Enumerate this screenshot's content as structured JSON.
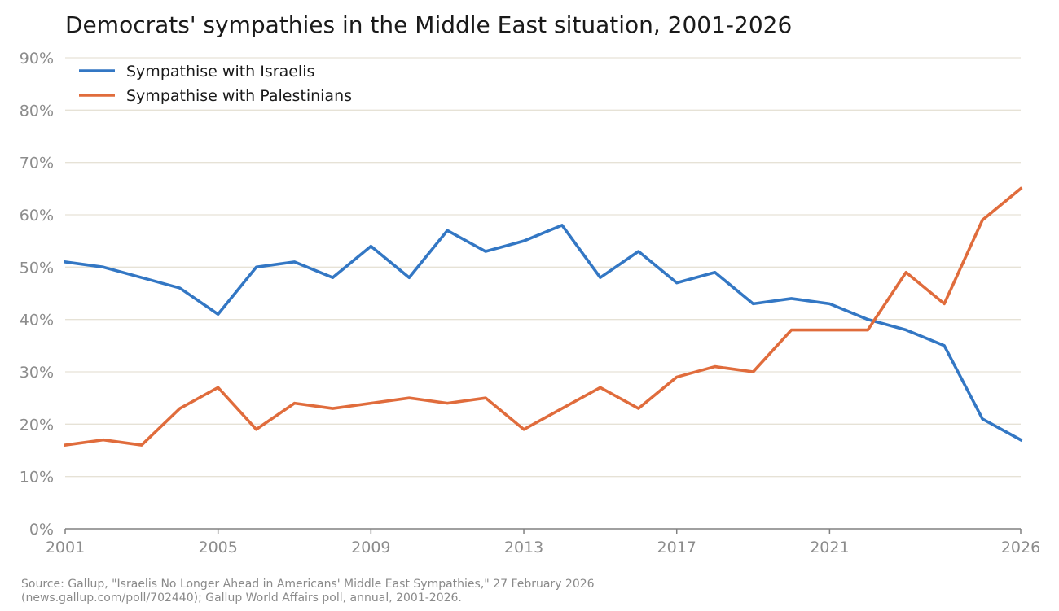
{
  "chart_data": {
    "type": "line",
    "title": "Democrats' sympathies in the Middle East situation, 2001-2026",
    "x": [
      2001,
      2002,
      2003,
      2004,
      2005,
      2006,
      2007,
      2008,
      2009,
      2010,
      2011,
      2012,
      2013,
      2014,
      2015,
      2016,
      2017,
      2018,
      2019,
      2020,
      2021,
      2022,
      2023,
      2024,
      2025,
      2026
    ],
    "xticks": [
      "2001",
      "2005",
      "2009",
      "2013",
      "2017",
      "2021",
      "2026"
    ],
    "yticks": [
      "0%",
      "10%",
      "20%",
      "30%",
      "40%",
      "50%",
      "60%",
      "70%",
      "80%",
      "90%"
    ],
    "ylim": [
      0,
      90
    ],
    "xlim": [
      2001,
      2026
    ],
    "grid": "horizontal",
    "legend_position": "top-left",
    "series": [
      {
        "name": "Sympathise with Israelis",
        "color": "#3377c4",
        "values": [
          51,
          50,
          48,
          46,
          41,
          50,
          51,
          48,
          54,
          48,
          57,
          53,
          55,
          58,
          48,
          53,
          47,
          49,
          43,
          44,
          43,
          40,
          38,
          35,
          21,
          17
        ]
      },
      {
        "name": "Sympathise with Palestinians",
        "color": "#e06c3c",
        "values": [
          16,
          17,
          16,
          23,
          27,
          19,
          24,
          23,
          24,
          25,
          24,
          25,
          19,
          23,
          27,
          23,
          29,
          31,
          30,
          38,
          38,
          38,
          49,
          43,
          59,
          65
        ]
      }
    ]
  },
  "source": {
    "line1": "Source: Gallup, \"Israelis No Longer Ahead in Americans' Middle East Sympathies,\" 27 February 2026",
    "line2": "(news.gallup.com/poll/702440); Gallup World Affairs poll, annual, 2001-2026."
  }
}
